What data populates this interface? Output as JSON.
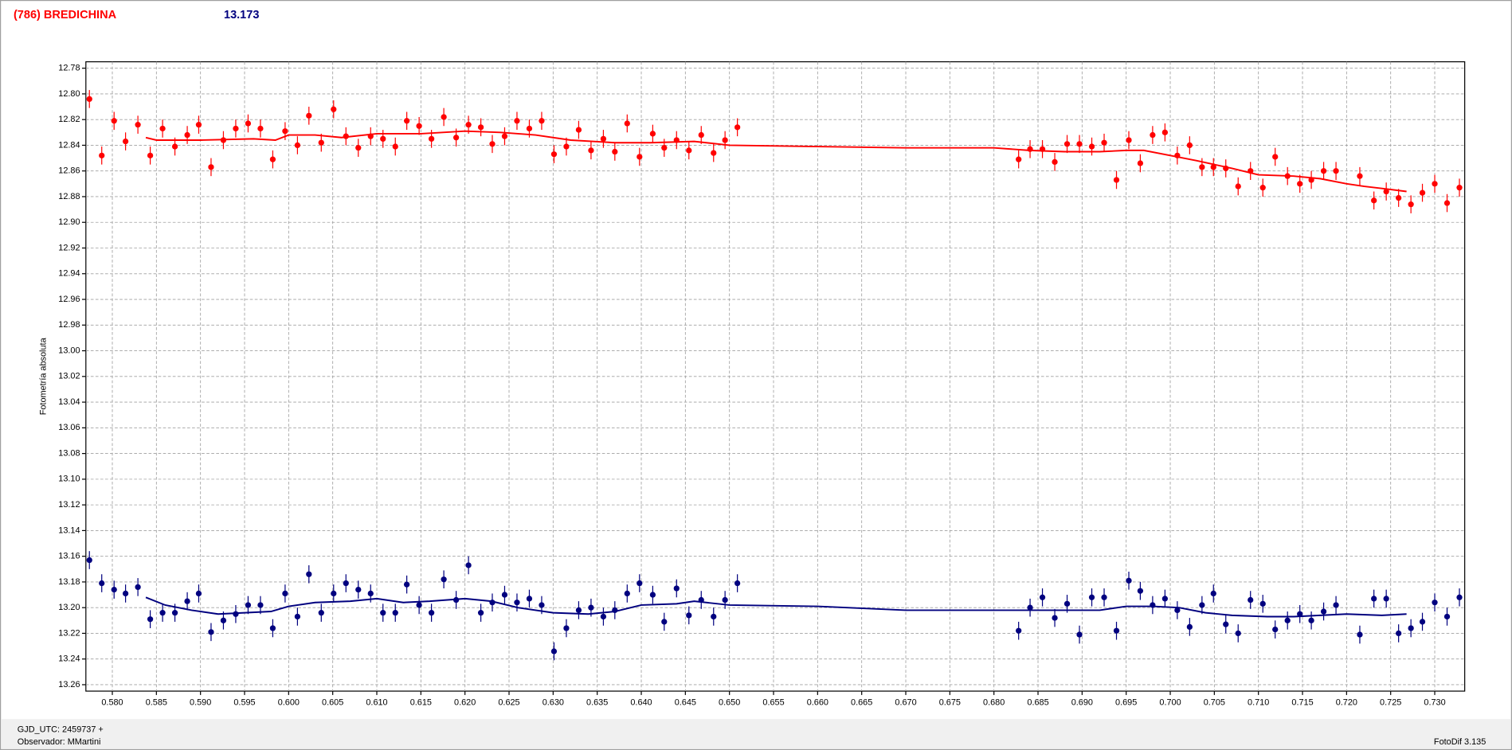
{
  "chart_data": {
    "type": "scatter",
    "title": "(786) BREDICHINA",
    "subtitle": "13.173",
    "y_label": "Fotometría absoluta",
    "x_note": "GJD_UTC: 2459737 +",
    "observer": "Observador: MMartini",
    "software": "FotoDif 3.135",
    "xlim": [
      0.577,
      0.7334
    ],
    "ylim": [
      12.775,
      13.265
    ],
    "y_inverted": true,
    "grid": true,
    "xticks": [
      {
        "value": 0.58,
        "label": "0.580"
      },
      {
        "value": 0.585,
        "label": "0.585"
      },
      {
        "value": 0.59,
        "label": "0.590"
      },
      {
        "value": 0.595,
        "label": "0.595"
      },
      {
        "value": 0.6,
        "label": "0.600"
      },
      {
        "value": 0.605,
        "label": "0.605"
      },
      {
        "value": 0.61,
        "label": "0.610"
      },
      {
        "value": 0.615,
        "label": "0.615"
      },
      {
        "value": 0.62,
        "label": "0.620"
      },
      {
        "value": 0.625,
        "label": "0.625"
      },
      {
        "value": 0.63,
        "label": "0.630"
      },
      {
        "value": 0.635,
        "label": "0.635"
      },
      {
        "value": 0.64,
        "label": "0.640"
      },
      {
        "value": 0.645,
        "label": "0.645"
      },
      {
        "value": 0.65,
        "label": "0.650"
      },
      {
        "value": 0.655,
        "label": "0.655"
      },
      {
        "value": 0.66,
        "label": "0.660"
      },
      {
        "value": 0.665,
        "label": "0.665"
      },
      {
        "value": 0.67,
        "label": "0.670"
      },
      {
        "value": 0.675,
        "label": "0.675"
      },
      {
        "value": 0.68,
        "label": "0.680"
      },
      {
        "value": 0.685,
        "label": "0.685"
      },
      {
        "value": 0.69,
        "label": "0.690"
      },
      {
        "value": 0.695,
        "label": "0.695"
      },
      {
        "value": 0.7,
        "label": "0.700"
      },
      {
        "value": 0.705,
        "label": "0.705"
      },
      {
        "value": 0.71,
        "label": "0.710"
      },
      {
        "value": 0.715,
        "label": "0.715"
      },
      {
        "value": 0.72,
        "label": "0.720"
      },
      {
        "value": 0.725,
        "label": "0.725"
      },
      {
        "value": 0.73,
        "label": "0.730"
      }
    ],
    "yticks": [
      12.78,
      {
        "value": 12.8,
        "label": "12.80"
      },
      12.82,
      12.84,
      12.86,
      12.88,
      {
        "value": 12.9,
        "label": "12.90"
      },
      12.92,
      12.94,
      12.96,
      12.98,
      {
        "value": 13.0,
        "label": "13.00"
      },
      13.02,
      13.04,
      13.06,
      13.08,
      {
        "value": 13.1,
        "label": "13.10"
      },
      13.12,
      13.14,
      13.16,
      13.18,
      {
        "value": 13.2,
        "label": "13.20"
      },
      13.22,
      13.24,
      13.26
    ],
    "series": [
      {
        "style": "errorbar",
        "color": "#ff0000",
        "error": 0.007,
        "x": [
          0.5774,
          0.5788,
          0.5802,
          0.5815,
          0.5829,
          0.5843,
          0.5857,
          0.5871,
          0.5885,
          0.5898,
          0.5912,
          0.5926,
          0.594,
          0.5954,
          0.5968,
          0.5982,
          0.5996,
          0.601,
          0.6023,
          0.6037,
          0.6051,
          0.6065,
          0.6079,
          0.6093,
          0.6107,
          0.6121,
          0.6134,
          0.6148,
          0.6162,
          0.6176,
          0.619,
          0.6204,
          0.6218,
          0.6231,
          0.6245,
          0.6259,
          0.6273,
          0.6287,
          0.6301,
          0.6315,
          0.6329,
          0.6343,
          0.6357,
          0.637,
          0.6384,
          0.6398,
          0.6413,
          0.6426,
          0.644,
          0.6454,
          0.6468,
          0.6482,
          0.6495,
          0.6509,
          0.6828,
          0.6841,
          0.6855,
          0.6869,
          0.6883,
          0.6897,
          0.6911,
          0.6925,
          0.6939,
          0.6953,
          0.6966,
          0.698,
          0.6994,
          0.7008,
          0.7022,
          0.7036,
          0.7049,
          0.7063,
          0.7077,
          0.7091,
          0.7105,
          0.7119,
          0.7133,
          0.7147,
          0.716,
          0.7174,
          0.7188,
          0.7215,
          0.7231,
          0.7245,
          0.7259,
          0.7273,
          0.7286,
          0.73,
          0.7314,
          0.7328
        ],
        "values": [
          12.804,
          12.848,
          12.821,
          12.837,
          12.824,
          12.848,
          12.827,
          12.841,
          12.832,
          12.824,
          12.857,
          12.836,
          12.827,
          12.823,
          12.827,
          12.851,
          12.829,
          12.84,
          12.817,
          12.838,
          12.812,
          12.833,
          12.842,
          12.833,
          12.835,
          12.841,
          12.821,
          12.825,
          12.835,
          12.818,
          12.834,
          12.824,
          12.826,
          12.839,
          12.833,
          12.821,
          12.827,
          12.821,
          12.847,
          12.841,
          12.828,
          12.844,
          12.835,
          12.845,
          12.823,
          12.849,
          12.831,
          12.842,
          12.836,
          12.844,
          12.832,
          12.846,
          12.836,
          12.826,
          12.851,
          12.843,
          12.843,
          12.853,
          12.839,
          12.839,
          12.841,
          12.838,
          12.867,
          12.836,
          12.854,
          12.832,
          12.83,
          12.848,
          12.84,
          12.857,
          12.857,
          12.858,
          12.872,
          12.86,
          12.873,
          12.849,
          12.864,
          12.87,
          12.867,
          12.86,
          12.86,
          12.864,
          12.883,
          12.876,
          12.881,
          12.886,
          12.877,
          12.87,
          12.885,
          12.873
        ]
      },
      {
        "style": "line",
        "color": "#ff0000",
        "x": [
          0.5838,
          0.585,
          0.59,
          0.596,
          0.5985,
          0.6,
          0.603,
          0.606,
          0.61,
          0.615,
          0.62,
          0.624,
          0.628,
          0.632,
          0.637,
          0.641,
          0.646,
          0.65,
          0.66,
          0.67,
          0.68,
          0.684,
          0.688,
          0.692,
          0.695,
          0.697,
          0.7,
          0.703,
          0.707,
          0.71,
          0.714,
          0.717,
          0.72,
          0.722,
          0.7245,
          0.7268
        ],
        "values": [
          12.834,
          12.836,
          12.836,
          12.835,
          12.836,
          12.832,
          12.832,
          12.834,
          12.831,
          12.831,
          12.829,
          12.83,
          12.832,
          12.836,
          12.838,
          12.838,
          12.837,
          12.84,
          12.841,
          12.842,
          12.842,
          12.844,
          12.845,
          12.845,
          12.844,
          12.844,
          12.848,
          12.852,
          12.858,
          12.863,
          12.864,
          12.866,
          12.87,
          12.872,
          12.874,
          12.876
        ]
      },
      {
        "style": "errorbar",
        "color": "#00007f",
        "error": 0.007,
        "x": [
          0.5774,
          0.5788,
          0.5802,
          0.5815,
          0.5829,
          0.5843,
          0.5857,
          0.5871,
          0.5885,
          0.5898,
          0.5912,
          0.5926,
          0.594,
          0.5954,
          0.5968,
          0.5982,
          0.5996,
          0.601,
          0.6023,
          0.6037,
          0.6051,
          0.6065,
          0.6079,
          0.6093,
          0.6107,
          0.6121,
          0.6134,
          0.6148,
          0.6162,
          0.6176,
          0.619,
          0.6204,
          0.6218,
          0.6231,
          0.6245,
          0.6259,
          0.6273,
          0.6287,
          0.6301,
          0.6315,
          0.6329,
          0.6343,
          0.6357,
          0.637,
          0.6384,
          0.6398,
          0.6413,
          0.6426,
          0.644,
          0.6454,
          0.6468,
          0.6482,
          0.6495,
          0.6509,
          0.6828,
          0.6841,
          0.6855,
          0.6869,
          0.6883,
          0.6897,
          0.6911,
          0.6925,
          0.6939,
          0.6953,
          0.6966,
          0.698,
          0.6994,
          0.7008,
          0.7022,
          0.7036,
          0.7049,
          0.7063,
          0.7077,
          0.7091,
          0.7105,
          0.7119,
          0.7133,
          0.7147,
          0.716,
          0.7174,
          0.7188,
          0.7215,
          0.7231,
          0.7245,
          0.7259,
          0.7273,
          0.7286,
          0.73,
          0.7314,
          0.7328
        ],
        "values": [
          13.163,
          13.181,
          13.186,
          13.189,
          13.184,
          13.209,
          13.204,
          13.204,
          13.195,
          13.189,
          13.219,
          13.21,
          13.205,
          13.198,
          13.198,
          13.216,
          13.189,
          13.207,
          13.174,
          13.204,
          13.189,
          13.181,
          13.186,
          13.189,
          13.204,
          13.204,
          13.182,
          13.198,
          13.204,
          13.178,
          13.194,
          13.167,
          13.204,
          13.196,
          13.19,
          13.196,
          13.193,
          13.198,
          13.234,
          13.216,
          13.202,
          13.2,
          13.207,
          13.202,
          13.189,
          13.181,
          13.19,
          13.211,
          13.185,
          13.206,
          13.194,
          13.207,
          13.194,
          13.181,
          13.218,
          13.2,
          13.192,
          13.208,
          13.197,
          13.221,
          13.192,
          13.192,
          13.218,
          13.179,
          13.187,
          13.198,
          13.193,
          13.202,
          13.215,
          13.198,
          13.189,
          13.213,
          13.22,
          13.194,
          13.197,
          13.217,
          13.21,
          13.205,
          13.21,
          13.203,
          13.198,
          13.221,
          13.193,
          13.193,
          13.22,
          13.216,
          13.211,
          13.196,
          13.207,
          13.192
        ]
      },
      {
        "style": "line",
        "color": "#00007f",
        "x": [
          0.5838,
          0.586,
          0.589,
          0.592,
          0.595,
          0.598,
          0.6,
          0.603,
          0.607,
          0.61,
          0.613,
          0.616,
          0.62,
          0.623,
          0.626,
          0.63,
          0.634,
          0.637,
          0.64,
          0.644,
          0.646,
          0.65,
          0.66,
          0.67,
          0.68,
          0.684,
          0.688,
          0.692,
          0.695,
          0.698,
          0.701,
          0.704,
          0.707,
          0.711,
          0.714,
          0.717,
          0.72,
          0.724,
          0.7268
        ],
        "values": [
          13.192,
          13.198,
          13.202,
          13.205,
          13.204,
          13.203,
          13.199,
          13.196,
          13.195,
          13.193,
          13.196,
          13.195,
          13.193,
          13.195,
          13.2,
          13.204,
          13.205,
          13.203,
          13.198,
          13.197,
          13.195,
          13.198,
          13.199,
          13.202,
          13.202,
          13.202,
          13.202,
          13.202,
          13.199,
          13.199,
          13.2,
          13.204,
          13.206,
          13.207,
          13.207,
          13.206,
          13.205,
          13.206,
          13.205
        ]
      }
    ]
  }
}
